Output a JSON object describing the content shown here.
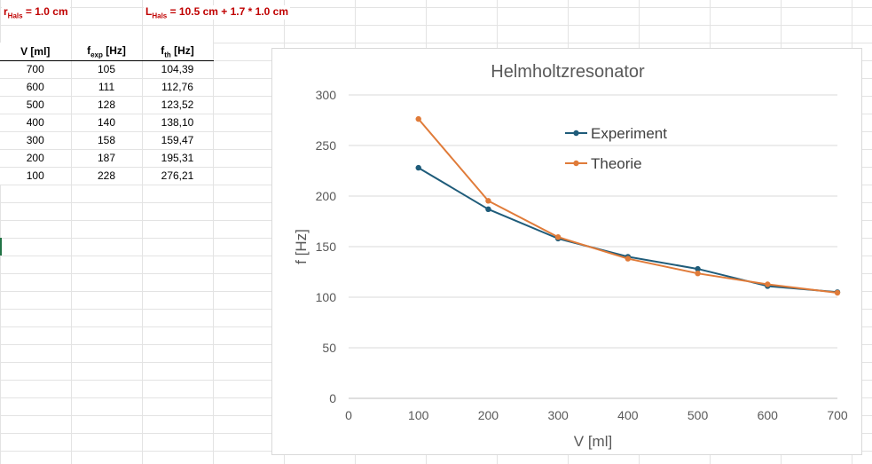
{
  "notes": {
    "r_prefix": "r",
    "r_sub": "Hals",
    "r_value": " = 1.0 cm",
    "l_prefix": "L",
    "l_sub": "Hals",
    "l_value": " = 10.5 cm + 1.7 * 1.0 cm"
  },
  "table": {
    "headers": [
      {
        "main": "V [ml]",
        "sub": "",
        "suffix": ""
      },
      {
        "main": "f",
        "sub": "exp",
        "suffix": " [Hz]"
      },
      {
        "main": "f",
        "sub": "th",
        "suffix": " [Hz]"
      }
    ],
    "rows": [
      [
        "700",
        "105",
        "104,39"
      ],
      [
        "600",
        "111",
        "112,76"
      ],
      [
        "500",
        "128",
        "123,52"
      ],
      [
        "400",
        "140",
        "138,10"
      ],
      [
        "300",
        "158",
        "159,47"
      ],
      [
        "200",
        "187",
        "195,31"
      ],
      [
        "100",
        "228",
        "276,21"
      ]
    ]
  },
  "chart_data": {
    "type": "line",
    "title": "Helmholtzresonator",
    "xlabel": "V [ml]",
    "ylabel": "f [Hz]",
    "xlim": [
      0,
      700
    ],
    "ylim": [
      0,
      300
    ],
    "xticks": [
      0,
      100,
      200,
      300,
      400,
      500,
      600,
      700
    ],
    "yticks": [
      0,
      50,
      100,
      150,
      200,
      250,
      300
    ],
    "grid": "horizontal",
    "legend_position": "top-right",
    "series": [
      {
        "name": "Experiment",
        "color": "#1f5c7a",
        "x": [
          100,
          200,
          300,
          400,
          500,
          600,
          700
        ],
        "y": [
          228,
          187,
          158,
          140,
          128,
          111,
          105
        ]
      },
      {
        "name": "Theorie",
        "color": "#e07b39",
        "x": [
          100,
          200,
          300,
          400,
          500,
          600,
          700
        ],
        "y": [
          276.21,
          195.31,
          159.47,
          138.1,
          123.52,
          112.76,
          104.39
        ]
      }
    ]
  }
}
